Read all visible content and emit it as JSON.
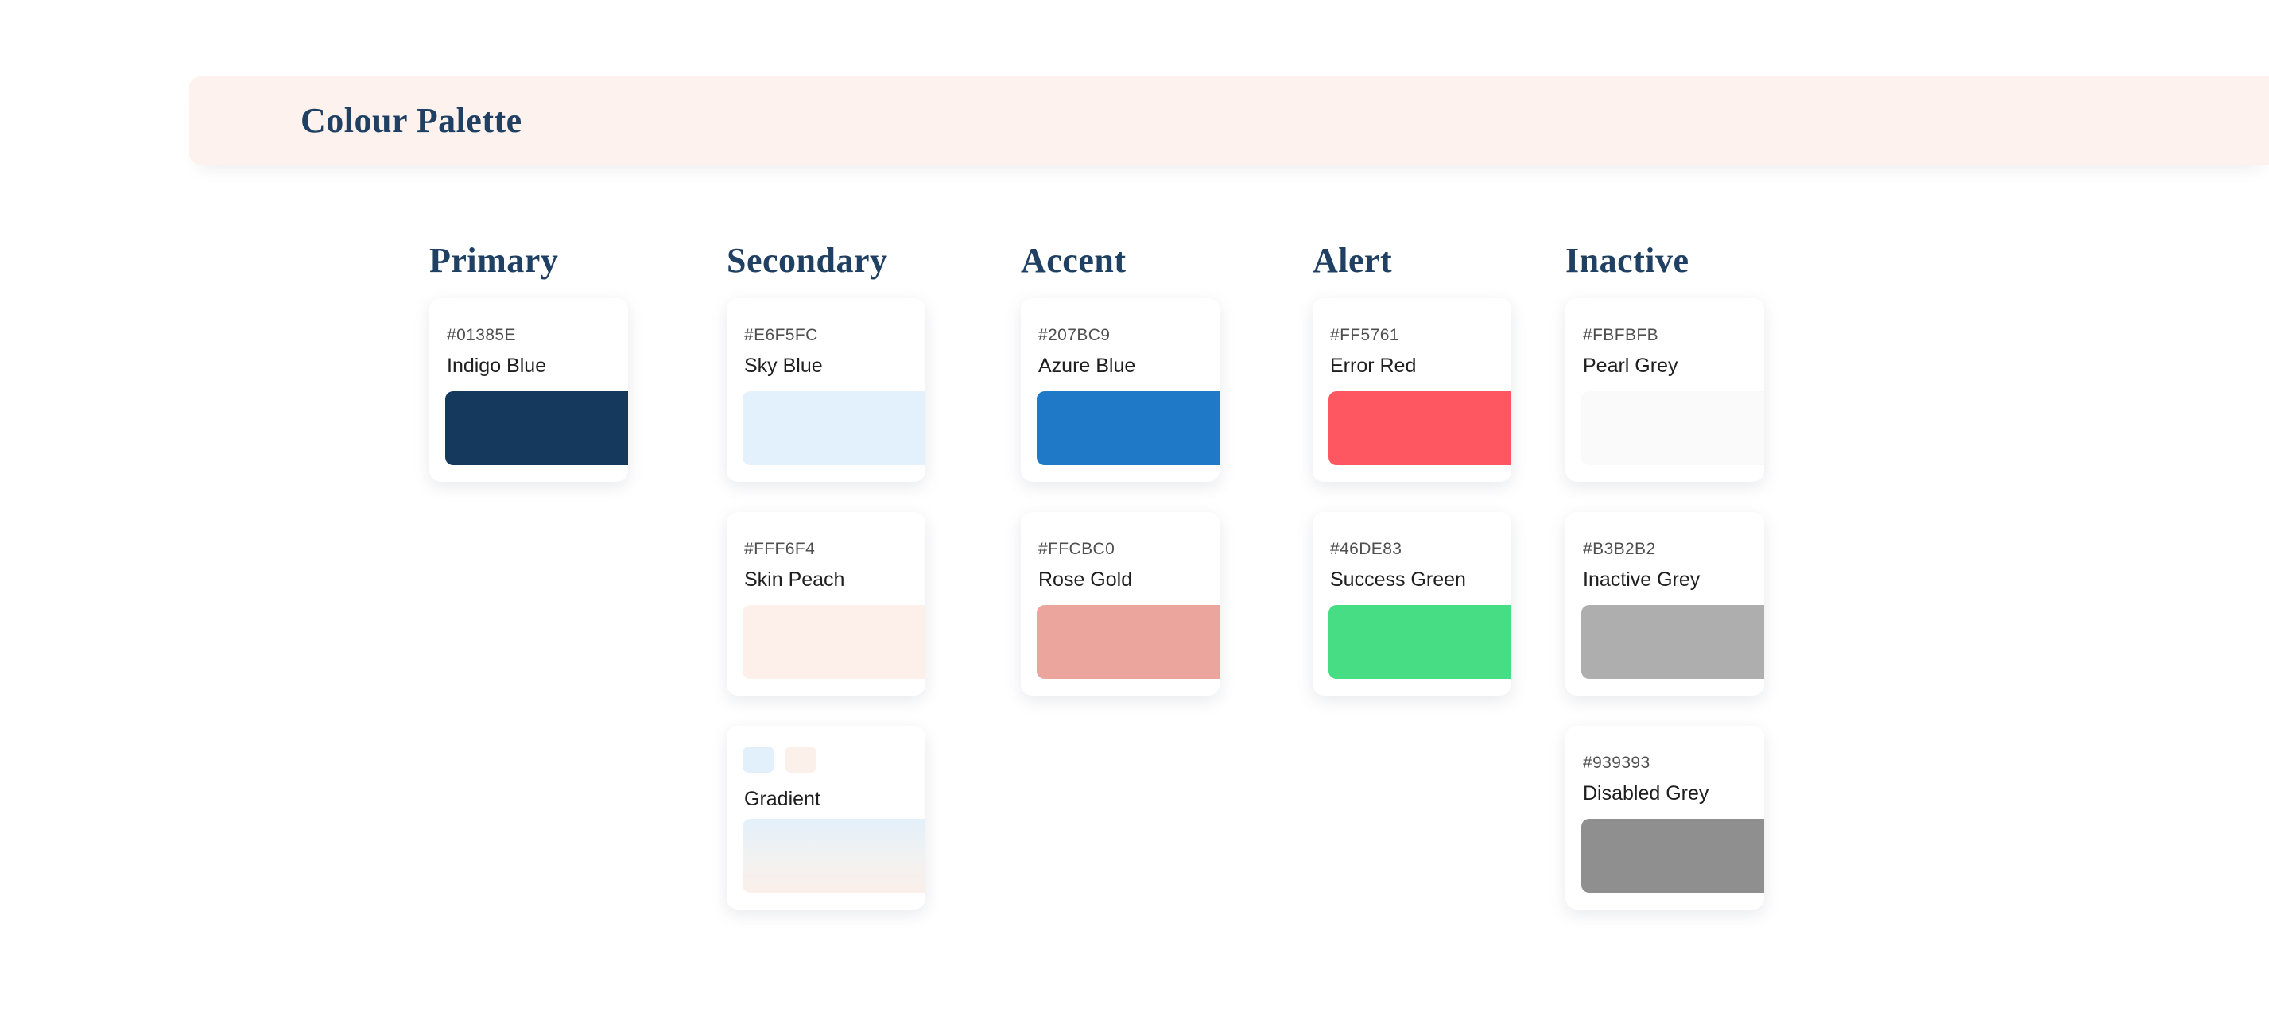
{
  "header": {
    "title": "Colour Palette"
  },
  "theme": {
    "banner_bg": "#FDF2ED",
    "heading_navy": "#1F4062",
    "hex_text_grey": "#4F4F4F",
    "name_text": "#1E1E1E",
    "card_bg": "#FFFFFF"
  },
  "groups": [
    {
      "name": "Primary",
      "cards": [
        {
          "hex": "#01385E",
          "label": "Indigo Blue",
          "swatch": "#15395D"
        }
      ]
    },
    {
      "name": "Secondary",
      "cards": [
        {
          "hex": "#E6F5FC",
          "label": "Sky Blue",
          "swatch": "#E2F1FB"
        },
        {
          "hex": "#FFF6F4",
          "label": "Skin Peach",
          "swatch": "#FDF0EB"
        },
        {
          "label": "Gradient",
          "type": "gradient",
          "chips": [
            "#E1F0FA",
            "#FCF0EB"
          ],
          "gradient_css": "linear-gradient(180deg, #E3F0FA 0%, #F2F2F1 55%, #FBEFE9 100%)"
        }
      ]
    },
    {
      "name": "Accent",
      "cards": [
        {
          "hex": "#207BC9",
          "label": "Azure Blue",
          "swatch": "#2079C7"
        },
        {
          "hex": "#FFCBC0",
          "label": "Rose Gold",
          "swatch": "#ECA59D"
        }
      ]
    },
    {
      "name": "Alert",
      "cards": [
        {
          "hex": "#FF5761",
          "label": "Error Red",
          "swatch": "#FF5761"
        },
        {
          "hex": "#46DE83",
          "label": "Success Green",
          "swatch": "#47DD84"
        }
      ]
    },
    {
      "name": "Inactive",
      "cards": [
        {
          "hex": "#FBFBFB",
          "label": "Pearl Grey",
          "swatch": "#FAFAFA"
        },
        {
          "hex": "#B3B2B2",
          "label": "Inactive Grey",
          "swatch": "#AFAEAE"
        },
        {
          "hex": "#939393",
          "label": "Disabled Grey",
          "swatch": "#8F8F8F"
        }
      ]
    }
  ]
}
